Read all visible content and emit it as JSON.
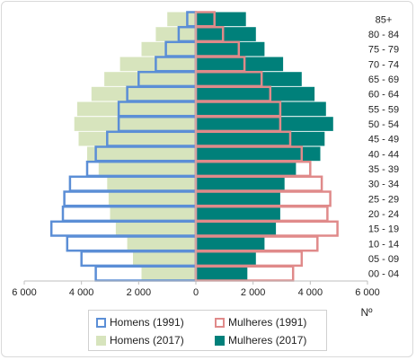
{
  "chart_data": {
    "type": "bar",
    "orientation": "horizontal",
    "layout": "population-pyramid",
    "categories": [
      "00 - 04",
      "05 - 09",
      "10 - 14",
      "15 - 19",
      "20 - 24",
      "25 - 29",
      "30 - 34",
      "35 - 39",
      "40 - 44",
      "45 - 49",
      "50 - 54",
      "55 - 59",
      "60 - 64",
      "65 - 69",
      "70 - 74",
      "75 - 79",
      "80 - 84",
      "85+"
    ],
    "series": [
      {
        "name": "Homens (1991)",
        "side": "left",
        "style": "outline",
        "color": "#5b8ed6",
        "values": [
          3500,
          4000,
          4500,
          5050,
          4650,
          4600,
          4400,
          3800,
          3500,
          3100,
          2700,
          2700,
          2400,
          2000,
          1400,
          1050,
          600,
          300
        ]
      },
      {
        "name": "Mulheres (1991)",
        "side": "right",
        "style": "outline",
        "color": "#e08a8a",
        "values": [
          3400,
          3700,
          4250,
          4950,
          4600,
          4700,
          4400,
          4000,
          3700,
          3300,
          2950,
          2950,
          2600,
          2300,
          1700,
          1500,
          950,
          650
        ]
      },
      {
        "name": "Homens (2017)",
        "side": "left",
        "style": "fill",
        "color": "#d7e4bd",
        "values": [
          1900,
          2200,
          2400,
          2800,
          3000,
          3050,
          3100,
          3400,
          3800,
          4100,
          4250,
          4150,
          3650,
          3200,
          2650,
          1900,
          1400,
          1000
        ]
      },
      {
        "name": "Mulheres (2017)",
        "side": "right",
        "style": "fill",
        "color": "#00807a",
        "values": [
          1800,
          2100,
          2400,
          2800,
          2950,
          2950,
          3100,
          3500,
          4350,
          4500,
          4800,
          4550,
          4150,
          3700,
          3050,
          2400,
          2100,
          1750
        ]
      }
    ],
    "xlim": [
      -6000,
      6000
    ],
    "x_ticks": [
      "6 000",
      "4 000",
      "2 000",
      "0",
      "2 000",
      "4 000",
      "6 000"
    ],
    "x_tick_values": [
      -6000,
      -4000,
      -2000,
      0,
      2000,
      4000,
      6000
    ],
    "xlabel": "Nº",
    "ylabel": "",
    "title": "",
    "grid": false,
    "legend_position": "bottom"
  }
}
